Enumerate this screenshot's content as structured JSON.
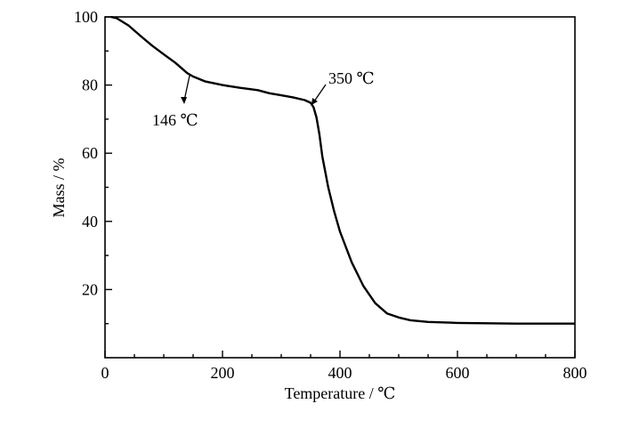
{
  "chart_data": {
    "type": "line",
    "xlabel": "Temperature / ℃",
    "ylabel": "Mass / %",
    "xlim": [
      0,
      800
    ],
    "ylim": [
      0,
      100
    ],
    "x_ticks": [
      0,
      200,
      400,
      600,
      800
    ],
    "y_ticks": [
      20,
      40,
      60,
      80,
      100
    ],
    "grid": false,
    "series": [
      {
        "x": [
          10,
          20,
          40,
          60,
          80,
          100,
          120,
          140,
          150,
          170,
          200,
          230,
          260,
          280,
          300,
          320,
          340,
          350,
          355,
          360,
          365,
          370,
          380,
          390,
          400,
          420,
          440,
          460,
          480,
          500,
          520,
          550,
          600,
          650,
          700,
          750,
          800
        ],
        "y": [
          100,
          99.6,
          97.5,
          94.5,
          91.6,
          89.0,
          86.5,
          83.5,
          82.5,
          81.1,
          80.0,
          79.2,
          78.5,
          77.6,
          77.0,
          76.4,
          75.6,
          74.8,
          73.5,
          70.5,
          65.5,
          59.0,
          50.0,
          43.0,
          37.0,
          28.0,
          21.0,
          16.0,
          13.0,
          11.8,
          11.0,
          10.5,
          10.2,
          10.1,
          10.0,
          10.0,
          10.0
        ]
      }
    ],
    "annotations": [
      {
        "label": "146 ℃",
        "x": 146,
        "y": 83
      },
      {
        "label": "350 ℃",
        "x": 350,
        "y": 74.8
      }
    ]
  }
}
